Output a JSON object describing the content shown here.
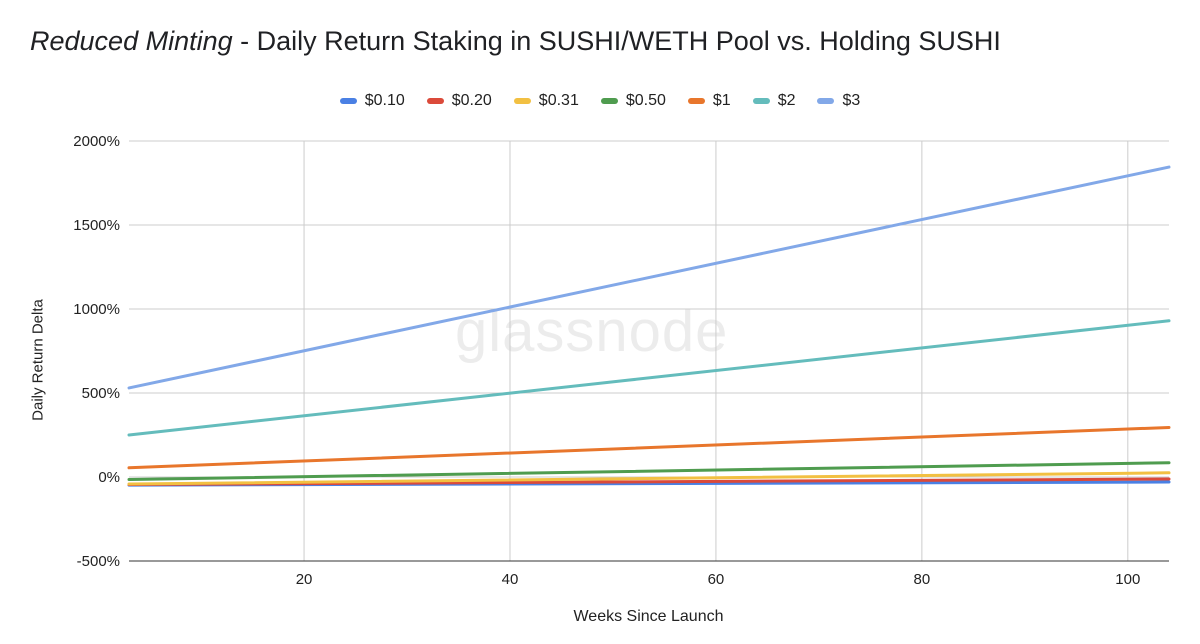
{
  "chart_data": {
    "type": "line",
    "title_italic": "Reduced Minting",
    "title_rest": " - Daily Return Staking in SUSHI/WETH Pool vs. Holding SUSHI",
    "xlabel": "Weeks Since Launch",
    "ylabel": "Daily Return Delta",
    "xlim": [
      3,
      104
    ],
    "ylim": [
      -500,
      2000
    ],
    "x_ticks": [
      20,
      40,
      60,
      80,
      100
    ],
    "y_ticks": [
      -500,
      0,
      500,
      1000,
      1500,
      2000
    ],
    "y_tick_labels": [
      "-500%",
      "0%",
      "500%",
      "1000%",
      "1500%",
      "2000%"
    ],
    "grid": true,
    "legend_position": "top",
    "x": [
      3,
      104
    ],
    "series": [
      {
        "name": "$0.10",
        "color": "#4a80e4",
        "values": [
          -48,
          -30
        ]
      },
      {
        "name": "$0.20",
        "color": "#db4a3a",
        "values": [
          -45,
          -12
        ]
      },
      {
        "name": "$0.31",
        "color": "#f2c042",
        "values": [
          -42,
          25
        ]
      },
      {
        "name": "$0.50",
        "color": "#4f9c4f",
        "values": [
          -15,
          85
        ]
      },
      {
        "name": "$1",
        "color": "#e8762c",
        "values": [
          55,
          295
        ]
      },
      {
        "name": "$2",
        "color": "#64bcbc",
        "values": [
          250,
          930
        ]
      },
      {
        "name": "$3",
        "color": "#82a8e8",
        "values": [
          530,
          1845
        ]
      }
    ],
    "watermark": "glassnode"
  }
}
